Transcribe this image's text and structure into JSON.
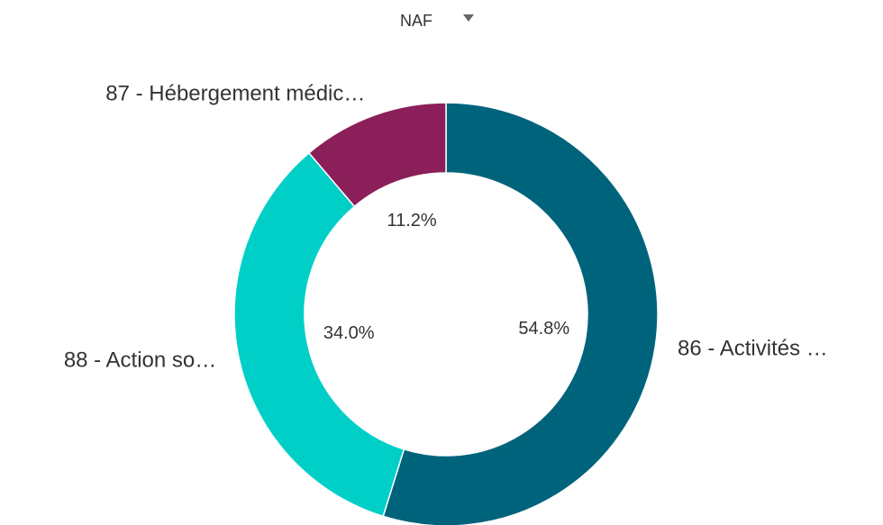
{
  "chart_data": {
    "type": "pie",
    "title": "NAF",
    "categories": [
      "86 - Activités …",
      "88 - Action so…",
      "87 - Hébergement médic…"
    ],
    "values": [
      54.8,
      34.0,
      11.2
    ],
    "value_labels": [
      "54.8%",
      "34.0%",
      "11.2%"
    ],
    "colors": [
      "#00637c",
      "#00cfc8",
      "#8b1f5a"
    ],
    "donut": true
  }
}
